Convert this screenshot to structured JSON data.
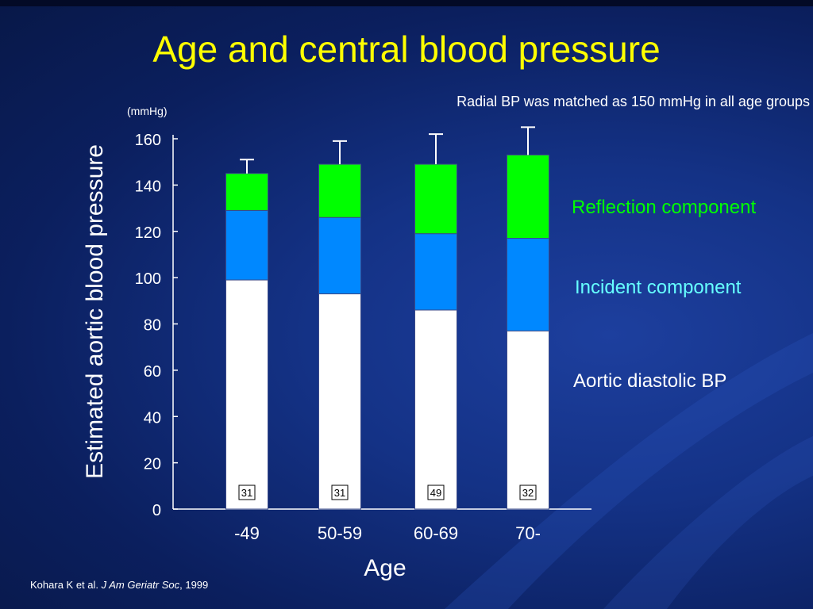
{
  "title": "Age and central blood pressure",
  "note": "Radial BP was matched as 150 mmHg in all age groups",
  "citation": {
    "authors": "Kohara K et al.",
    "journal": "J Am Geriatr Soc",
    "year": ", 1999"
  },
  "colors": {
    "reflection": "#00ff00",
    "incident": "#0088ff",
    "diastolic": "#ffffff",
    "title": "#ffff00",
    "background": "#143286"
  },
  "chart_data": {
    "type": "bar",
    "stacked": true,
    "title": "",
    "xlabel": "Age",
    "ylabel": "Estimated aortic blood pressure",
    "yunit": "(mmHg)",
    "ylim": [
      0,
      160
    ],
    "yticks": [
      0,
      20,
      40,
      60,
      80,
      100,
      120,
      140,
      160
    ],
    "categories": [
      "-49",
      "50-59",
      "60-69",
      "70-"
    ],
    "n": [
      "31",
      "31",
      "49",
      "32"
    ],
    "series": [
      {
        "name": "Aortic diastolic BP",
        "values": [
          99,
          93,
          86,
          77
        ]
      },
      {
        "name": "Incident component",
        "values": [
          30,
          33,
          33,
          40
        ]
      },
      {
        "name": "Reflection component",
        "values": [
          16,
          23,
          30,
          36
        ]
      }
    ],
    "totals": [
      145,
      149,
      149,
      153
    ],
    "error_bars": [
      6,
      10,
      13,
      12
    ],
    "grid": false,
    "legend_position": "right"
  }
}
